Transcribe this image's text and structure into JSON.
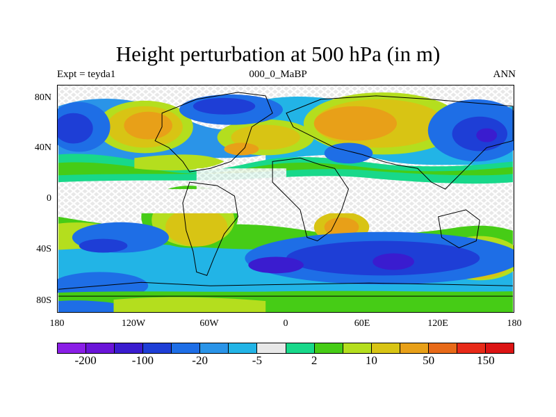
{
  "title": "Height perturbation at 500 hPa (in m)",
  "subtitle_left": "Expt = teyda1",
  "subtitle_center": "000_0_MaBP",
  "subtitle_right": "ANN",
  "lat_labels": [
    "80N",
    "40N",
    "0",
    "40S",
    "80S"
  ],
  "lon_labels": [
    "180",
    "120W",
    "60W",
    "0",
    "60E",
    "120E",
    "180"
  ],
  "colorbar": {
    "colors": [
      "#8a1ee6",
      "#6a14d8",
      "#3a1ccf",
      "#1e3ed6",
      "#1e6ee6",
      "#2a94e8",
      "#22b4e6",
      "#e8e8e8",
      "#18d88a",
      "#46cc16",
      "#b4de1e",
      "#d8c414",
      "#e8a018",
      "#e86a18",
      "#e82a18",
      "#dc1414"
    ],
    "labels": [
      "-200",
      "-100",
      "-20",
      "-5",
      "2",
      "10",
      "50",
      "150"
    ]
  },
  "map": {
    "background": "#e8e8e8",
    "base_band_color": "#22b4e6"
  }
}
